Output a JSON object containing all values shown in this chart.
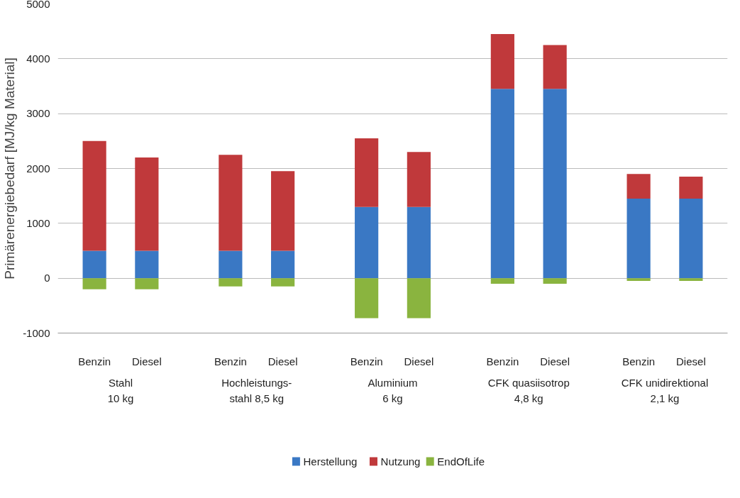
{
  "chart_data": {
    "type": "bar",
    "stacked": true,
    "ylabel": "Primärenergiebedarf [MJ/kg Material]",
    "categories": [
      [
        "Stahl\n10 kg",
        "Benzin"
      ],
      [
        null,
        "Diesel"
      ],
      [
        "Hochleistungs-\nstahl 8,5 kg",
        "Benzin"
      ],
      [
        null,
        "Diesel"
      ],
      [
        "Aluminium\n6 kg",
        "Benzin"
      ],
      [
        null,
        "Diesel"
      ],
      [
        "CFK quasiisotrop\n4,8 kg",
        "Benzin"
      ],
      [
        null,
        "Diesel"
      ],
      [
        "CFK unidirektional\n2,1 kg",
        "Benzin"
      ],
      [
        null,
        "Diesel"
      ]
    ],
    "series": [
      {
        "name": "Herstellung",
        "color": "#3a78c4",
        "values": [
          500,
          500,
          500,
          500,
          1300,
          1300,
          3450,
          3450,
          1450,
          1450
        ]
      },
      {
        "name": "Nutzung",
        "color": "#c0393b",
        "values": [
          2000,
          1700,
          1750,
          1450,
          1250,
          1000,
          1000,
          800,
          450,
          400
        ]
      },
      {
        "name": "EndOfLife",
        "color": "#8ab43f",
        "values": [
          -200,
          -200,
          -150,
          -150,
          -730,
          -730,
          -100,
          -100,
          -50,
          -50
        ]
      }
    ],
    "ylim": [
      -1000,
      5000
    ],
    "yticks": [
      -1000,
      0,
      1000,
      2000,
      3000,
      4000,
      5000
    ],
    "grid": "y",
    "legend": "bottom"
  }
}
